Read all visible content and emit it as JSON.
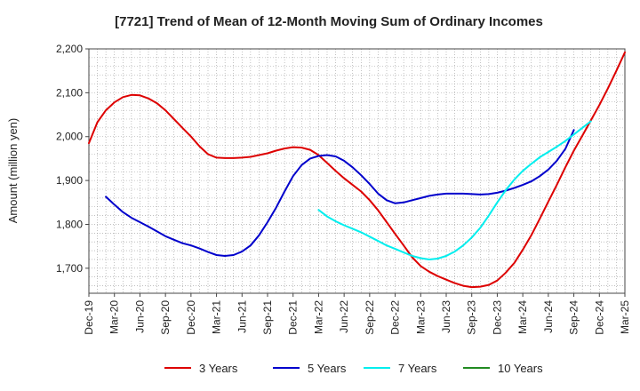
{
  "chart_data": {
    "type": "line",
    "title": "[7721]  Trend of Mean of 12-Month Moving Sum of Ordinary Incomes",
    "xlabel": "",
    "ylabel": "Amount (million yen)",
    "ylim": [
      1643,
      2200
    ],
    "y_ticks": [
      1700,
      1800,
      1900,
      2000,
      2100,
      2200
    ],
    "y_tick_labels": [
      "1,700",
      "1,800",
      "1,900",
      "2,000",
      "2,100",
      "2,200"
    ],
    "x_tick_labels": [
      "Dec-19",
      "Mar-20",
      "Jun-20",
      "Sep-20",
      "Dec-20",
      "Mar-21",
      "Jun-21",
      "Sep-21",
      "Dec-21",
      "Mar-22",
      "Jun-22",
      "Sep-22",
      "Dec-22",
      "Mar-23",
      "Jun-23",
      "Sep-23",
      "Dec-23",
      "Mar-24",
      "Jun-24",
      "Sep-24",
      "Dec-24",
      "Mar-25"
    ],
    "x_range_months": [
      0,
      63
    ],
    "grid": true,
    "legend_position": "bottom",
    "series": [
      {
        "name": "3 Years",
        "color": "#dd0000",
        "start_month": 0,
        "values": [
          1985,
          2033,
          2060,
          2078,
          2090,
          2095,
          2094,
          2087,
          2076,
          2060,
          2040,
          2020,
          2000,
          1978,
          1960,
          1952,
          1951,
          1951,
          1952,
          1954,
          1958,
          1962,
          1968,
          1973,
          1976,
          1975,
          1970,
          1958,
          1940,
          1922,
          1905,
          1890,
          1875,
          1855,
          1832,
          1805,
          1778,
          1752,
          1725,
          1705,
          1692,
          1682,
          1674,
          1666,
          1660,
          1657,
          1658,
          1662,
          1672,
          1690,
          1712,
          1742,
          1775,
          1813,
          1852,
          1890,
          1930,
          1968,
          2002,
          2037,
          2072,
          2110,
          2150,
          2192
        ]
      },
      {
        "name": "5 Years",
        "color": "#0000cc",
        "start_month": 2,
        "values": [
          1863,
          1845,
          1828,
          1815,
          1805,
          1795,
          1784,
          1773,
          1765,
          1757,
          1752,
          1745,
          1737,
          1730,
          1728,
          1730,
          1738,
          1752,
          1775,
          1805,
          1838,
          1875,
          1910,
          1935,
          1950,
          1956,
          1958,
          1955,
          1945,
          1930,
          1912,
          1892,
          1870,
          1855,
          1848,
          1850,
          1855,
          1860,
          1865,
          1868,
          1870,
          1870,
          1870,
          1869,
          1868,
          1869,
          1872,
          1877,
          1883,
          1890,
          1898,
          1910,
          1925,
          1945,
          1972,
          2015
        ]
      },
      {
        "name": "7 Years",
        "color": "#00eeee",
        "start_month": 27,
        "values": [
          1833,
          1818,
          1807,
          1798,
          1790,
          1782,
          1772,
          1762,
          1752,
          1744,
          1736,
          1728,
          1723,
          1720,
          1722,
          1728,
          1738,
          1752,
          1770,
          1792,
          1820,
          1850,
          1878,
          1902,
          1922,
          1938,
          1953,
          1965,
          1977,
          1990,
          2005,
          2020,
          2035
        ]
      },
      {
        "name": "10 Years",
        "color": "#228B22",
        "start_month": 0,
        "values": []
      }
    ]
  }
}
